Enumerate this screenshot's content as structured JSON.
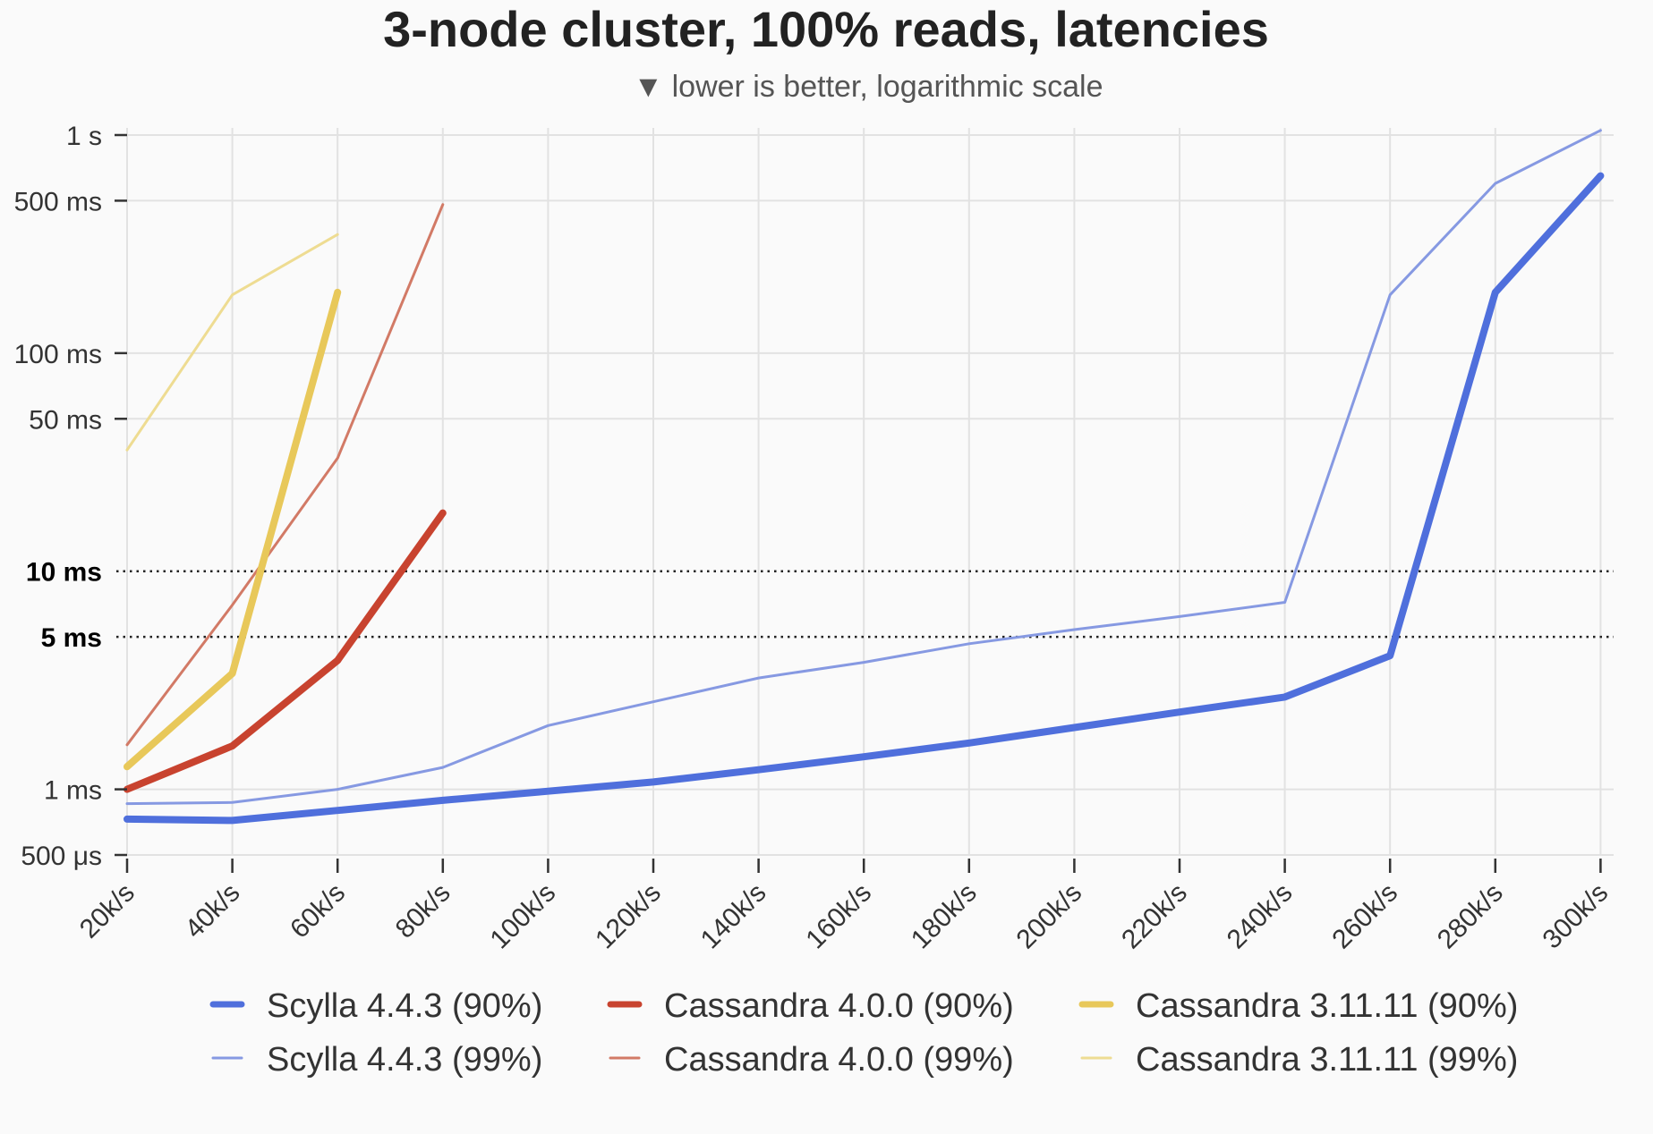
{
  "chart_data": {
    "type": "line",
    "title": "3-node cluster, 100% reads, latencies",
    "subtitle": "▼ lower is better, logarithmic scale",
    "x_categories": [
      "20k/s",
      "40k/s",
      "60k/s",
      "80k/s",
      "100k/s",
      "120k/s",
      "140k/s",
      "160k/s",
      "180k/s",
      "200k/s",
      "220k/s",
      "240k/s",
      "260k/s",
      "280k/s",
      "300k/s"
    ],
    "y_scale": "log",
    "y_unit": "ms",
    "ylim": [
      0.5,
      1000
    ],
    "y_ticks": [
      {
        "value": 1000,
        "label": "1 s",
        "bold": false,
        "dotted": false
      },
      {
        "value": 500,
        "label": "500 ms",
        "bold": false,
        "dotted": false
      },
      {
        "value": 100,
        "label": "100 ms",
        "bold": false,
        "dotted": false
      },
      {
        "value": 50,
        "label": "50 ms",
        "bold": false,
        "dotted": false
      },
      {
        "value": 10,
        "label": "10 ms",
        "bold": true,
        "dotted": true
      },
      {
        "value": 5,
        "label": "5 ms",
        "bold": true,
        "dotted": true
      },
      {
        "value": 1,
        "label": "1 ms",
        "bold": false,
        "dotted": false
      },
      {
        "value": 0.5,
        "label": "500 μs",
        "bold": false,
        "dotted": false
      }
    ],
    "grid": true,
    "legend_position": "bottom",
    "series": [
      {
        "name": "Scylla 4.4.3 (90%)",
        "color": "#4f6fdc",
        "weight": "thick",
        "values": [
          0.73,
          0.72,
          0.8,
          0.89,
          0.98,
          1.08,
          1.23,
          1.41,
          1.63,
          1.92,
          2.26,
          2.65,
          4.1,
          190,
          650
        ]
      },
      {
        "name": "Cassandra 4.0.0 (90%)",
        "color": "#c8432f",
        "weight": "thick",
        "values": [
          1.0,
          1.58,
          3.9,
          18.5
        ]
      },
      {
        "name": "Cassandra 3.11.11 (90%)",
        "color": "#e8c85a",
        "weight": "thick",
        "values": [
          1.27,
          3.4,
          190
        ]
      },
      {
        "name": "Scylla 4.4.3 (99%)",
        "color": "#8699e2",
        "weight": "thin",
        "values": [
          0.86,
          0.87,
          1.0,
          1.26,
          1.96,
          2.52,
          3.24,
          3.82,
          4.65,
          5.4,
          6.2,
          7.2,
          185,
          600,
          1050
        ]
      },
      {
        "name": "Cassandra 4.0.0 (99%)",
        "color": "#d27a66",
        "weight": "thin",
        "values": [
          1.6,
          7.0,
          33,
          480
        ]
      },
      {
        "name": "Cassandra 3.11.11 (99%)",
        "color": "#eedc92",
        "weight": "thin",
        "values": [
          36,
          185,
          350
        ]
      }
    ]
  }
}
